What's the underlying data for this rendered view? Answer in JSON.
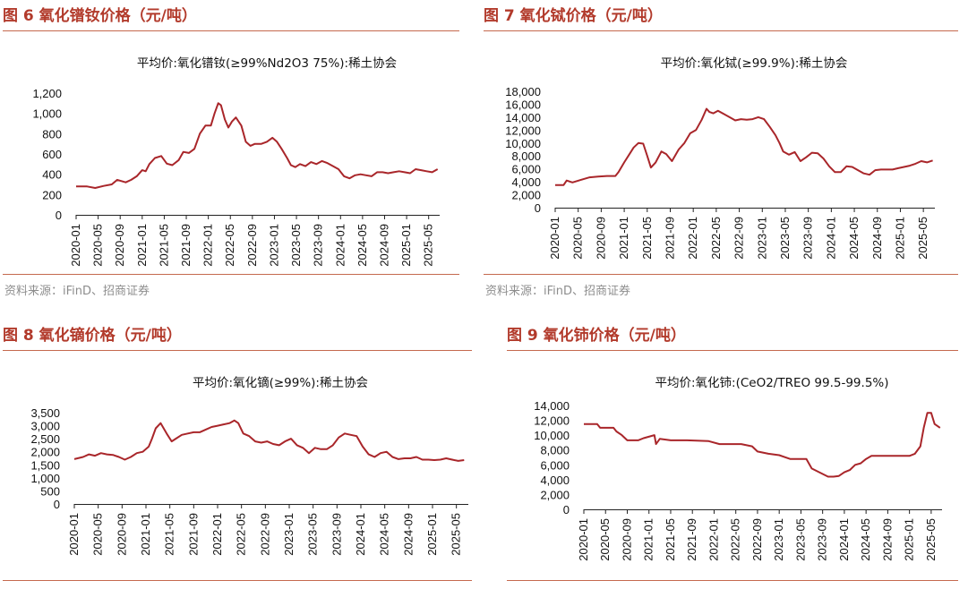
{
  "panels": [
    {
      "fig_label": "图 6",
      "fig_title": "氧化镨钕价格（元/吨）",
      "source": "资料来源：iFinD、招商证券",
      "chart_data": {
        "type": "line",
        "title": "平均价:氧化镨钕(≥99%Nd2O3 75%):稀土协会",
        "xlabel": "",
        "ylabel": "",
        "ylim": [
          0,
          1200
        ],
        "yticks": [
          "0",
          "200",
          "400",
          "600",
          "800",
          "1,000",
          "1,200"
        ],
        "ytick_values": [
          0,
          200,
          400,
          600,
          800,
          1000,
          1200
        ],
        "xticks": [
          "2020-01",
          "2020-05",
          "2020-09",
          "2021-01",
          "2021-05",
          "2021-09",
          "2022-01",
          "2022-05",
          "2022-09",
          "2023-01",
          "2023-05",
          "2023-09",
          "2024-01",
          "2024-05",
          "2024-09",
          "2025-01",
          "2025-05"
        ],
        "line_color": "#a9262a",
        "series": [
          {
            "x": [
              "2020-01-01",
              "2020-03-01",
              "2020-04-15",
              "2020-06-01",
              "2020-07-15",
              "2020-08-15",
              "2020-10-01",
              "2020-11-01",
              "2020-12-01",
              "2021-01-01",
              "2021-01-20",
              "2021-02-10",
              "2021-03-10",
              "2021-04-15",
              "2021-05-15",
              "2021-06-15",
              "2021-07-20",
              "2021-08-15",
              "2021-09-15",
              "2021-10-15",
              "2021-11-15",
              "2021-12-15",
              "2022-01-15",
              "2022-02-05",
              "2022-02-25",
              "2022-03-10",
              "2022-04-01",
              "2022-04-20",
              "2022-05-10",
              "2022-06-01",
              "2022-07-01",
              "2022-07-25",
              "2022-08-20",
              "2022-09-15",
              "2022-10-20",
              "2022-11-20",
              "2022-12-20",
              "2023-01-15",
              "2023-02-10",
              "2023-03-10",
              "2023-04-01",
              "2023-04-25",
              "2023-05-20",
              "2023-06-20",
              "2023-07-20",
              "2023-08-20",
              "2023-09-20",
              "2023-10-20",
              "2023-11-20",
              "2023-12-20",
              "2024-01-20",
              "2024-02-20",
              "2024-03-20",
              "2024-04-20",
              "2024-05-20",
              "2024-06-20",
              "2024-07-20",
              "2024-08-20",
              "2024-09-20",
              "2024-10-20",
              "2024-11-20",
              "2024-12-20",
              "2025-01-20",
              "2025-02-20",
              "2025-03-20",
              "2025-04-20",
              "2025-05-20",
              "2025-06-20"
            ],
            "y": [
              280,
              280,
              265,
              285,
              300,
              345,
              320,
              345,
              380,
              440,
              430,
              500,
              560,
              580,
              505,
              490,
              540,
              620,
              610,
              650,
              800,
              880,
              880,
              1000,
              1100,
              1080,
              940,
              860,
              920,
              960,
              880,
              720,
              680,
              700,
              700,
              720,
              760,
              720,
              650,
              560,
              490,
              470,
              500,
              480,
              520,
              500,
              530,
              510,
              480,
              450,
              380,
              360,
              390,
              400,
              390,
              380,
              420,
              420,
              410,
              420,
              430,
              420,
              410,
              450,
              440,
              430,
              420,
              450
            ]
          }
        ]
      }
    },
    {
      "fig_label": "图 7",
      "fig_title": "氧化铽价格（元/吨）",
      "source": "资料来源：iFinD、招商证券",
      "chart_data": {
        "type": "line",
        "title": "平均价:氧化铽(≥99.9%):稀土协会",
        "xlabel": "",
        "ylabel": "",
        "ylim": [
          0,
          18000
        ],
        "yticks": [
          "0",
          "2,000",
          "4,000",
          "6,000",
          "8,000",
          "10,000",
          "12,000",
          "14,000",
          "16,000",
          "18,000"
        ],
        "ytick_values": [
          0,
          2000,
          4000,
          6000,
          8000,
          10000,
          12000,
          14000,
          16000,
          18000
        ],
        "xticks": [
          "2020-01",
          "2020-05",
          "2020-09",
          "2021-01",
          "2021-05",
          "2021-09",
          "2022-01",
          "2022-05",
          "2022-09",
          "2023-01",
          "2023-05",
          "2023-09",
          "2024-01",
          "2024-05",
          "2024-09",
          "2025-01",
          "2025-05"
        ],
        "line_color": "#a9262a",
        "series": [
          {
            "x": [
              "2020-01-01",
              "2020-02-15",
              "2020-03-01",
              "2020-04-01",
              "2020-05-15",
              "2020-07-01",
              "2020-08-15",
              "2020-10-01",
              "2020-11-15",
              "2020-12-01",
              "2021-01-01",
              "2021-02-01",
              "2021-02-20",
              "2021-03-15",
              "2021-04-10",
              "2021-05-01",
              "2021-05-20",
              "2021-06-15",
              "2021-07-15",
              "2021-08-10",
              "2021-09-10",
              "2021-10-15",
              "2021-11-15",
              "2021-12-15",
              "2022-01-15",
              "2022-02-15",
              "2022-03-10",
              "2022-03-25",
              "2022-04-15",
              "2022-05-10",
              "2022-06-10",
              "2022-07-10",
              "2022-08-10",
              "2022-09-10",
              "2022-10-10",
              "2022-11-10",
              "2022-12-10",
              "2023-01-10",
              "2023-02-10",
              "2023-03-10",
              "2023-04-01",
              "2023-04-20",
              "2023-05-20",
              "2023-06-20",
              "2023-07-20",
              "2023-08-20",
              "2023-09-20",
              "2023-10-20",
              "2023-11-20",
              "2023-12-20",
              "2024-01-20",
              "2024-02-20",
              "2024-03-20",
              "2024-04-20",
              "2024-05-20",
              "2024-06-20",
              "2024-07-20",
              "2024-08-20",
              "2024-09-20",
              "2024-10-20",
              "2024-11-20",
              "2024-12-20",
              "2025-01-20",
              "2025-02-20",
              "2025-03-20",
              "2025-04-20",
              "2025-05-20",
              "2025-06-20"
            ],
            "y": [
              3500,
              3500,
              4200,
              3900,
              4300,
              4700,
              4800,
              4900,
              4900,
              5500,
              7000,
              8400,
              9300,
              10000,
              9900,
              8000,
              6200,
              7000,
              8700,
              8300,
              7200,
              9000,
              10000,
              11500,
              12000,
              13600,
              15300,
              14800,
              14600,
              15000,
              14500,
              14000,
              13500,
              13700,
              13600,
              13700,
              14000,
              13700,
              12500,
              11200,
              10000,
              8700,
              8200,
              8600,
              7200,
              7800,
              8500,
              8400,
              7600,
              6400,
              5500,
              5500,
              6400,
              6300,
              5800,
              5300,
              5100,
              5800,
              5900,
              5900,
              5900,
              6100,
              6300,
              6500,
              6800,
              7200,
              7000,
              7300
            ]
          }
        ]
      }
    },
    {
      "fig_label": "图 8",
      "fig_title": "氧化镝价格（元/吨）",
      "source": "",
      "chart_data": {
        "type": "line",
        "title": "平均价:氧化镝(≥99%):稀土协会",
        "xlabel": "",
        "ylabel": "",
        "ylim": [
          0,
          3500
        ],
        "yticks": [
          "0",
          "500",
          "1,000",
          "1,500",
          "2,000",
          "2,500",
          "3,000",
          "3,500"
        ],
        "ytick_values": [
          0,
          500,
          1000,
          1500,
          2000,
          2500,
          3000,
          3500
        ],
        "xticks": [
          "2020-01",
          "2020-05",
          "2020-09",
          "2021-01",
          "2021-05",
          "2021-09",
          "2022-01",
          "2022-05",
          "2022-09",
          "2023-01",
          "2023-05",
          "2023-09",
          "2024-01",
          "2024-05",
          "2024-09",
          "2025-01",
          "2025-05"
        ],
        "line_color": "#a9262a",
        "series": [
          {
            "x": [
              "2020-01-01",
              "2020-02-15",
              "2020-03-15",
              "2020-04-15",
              "2020-05-15",
              "2020-06-15",
              "2020-07-15",
              "2020-08-15",
              "2020-09-15",
              "2020-10-15",
              "2020-11-15",
              "2020-12-15",
              "2021-01-15",
              "2021-02-01",
              "2021-02-20",
              "2021-03-15",
              "2021-04-15",
              "2021-05-10",
              "2021-06-01",
              "2021-07-01",
              "2021-08-01",
              "2021-09-01",
              "2021-10-01",
              "2021-11-01",
              "2021-12-01",
              "2022-01-01",
              "2022-02-01",
              "2022-03-01",
              "2022-03-25",
              "2022-04-15",
              "2022-05-10",
              "2022-06-10",
              "2022-07-10",
              "2022-08-10",
              "2022-09-10",
              "2022-10-10",
              "2022-11-10",
              "2022-12-10",
              "2023-01-10",
              "2023-02-10",
              "2023-03-10",
              "2023-04-10",
              "2023-05-10",
              "2023-06-10",
              "2023-07-10",
              "2023-08-10",
              "2023-09-10",
              "2023-10-10",
              "2023-11-10",
              "2023-12-10",
              "2024-01-10",
              "2024-02-10",
              "2024-03-10",
              "2024-04-10",
              "2024-05-10",
              "2024-06-10",
              "2024-07-10",
              "2024-08-10",
              "2024-09-10",
              "2024-10-10",
              "2024-11-10",
              "2024-12-10",
              "2025-01-10",
              "2025-02-10",
              "2025-03-10",
              "2025-04-10",
              "2025-05-10",
              "2025-06-10"
            ],
            "y": [
              1720,
              1800,
              1900,
              1850,
              1950,
              1900,
              1880,
              1800,
              1700,
              1800,
              1950,
              2000,
              2200,
              2500,
              2900,
              3100,
              2700,
              2400,
              2500,
              2650,
              2700,
              2750,
              2750,
              2850,
              2950,
              3000,
              3050,
              3100,
              3200,
              3100,
              2700,
              2600,
              2400,
              2350,
              2400,
              2300,
              2250,
              2400,
              2500,
              2250,
              2150,
              1950,
              2150,
              2100,
              2100,
              2250,
              2550,
              2700,
              2650,
              2600,
              2200,
              1900,
              1800,
              1950,
              2000,
              1800,
              1720,
              1750,
              1750,
              1800,
              1700,
              1700,
              1680,
              1700,
              1750,
              1700,
              1650,
              1680
            ]
          }
        ]
      }
    },
    {
      "fig_label": "图 9",
      "fig_title": "氧化铈价格（元/吨）",
      "source": "",
      "chart_data": {
        "type": "line",
        "title": "平均价:氧化铈:(CeO2/TREO 99.5-99.5%)",
        "xlabel": "",
        "ylabel": "",
        "ylim": [
          0,
          14000
        ],
        "yticks": [
          "0",
          "2,000",
          "4,000",
          "6,000",
          "8,000",
          "10,000",
          "12,000",
          "14,000"
        ],
        "ytick_values": [
          0,
          2000,
          4000,
          6000,
          8000,
          10000,
          12000,
          14000
        ],
        "xticks": [
          "2020-01",
          "2020-05",
          "2020-09",
          "2021-01",
          "2021-05",
          "2021-09",
          "2022-01",
          "2022-05",
          "2022-09",
          "2023-01",
          "2023-05",
          "2023-09",
          "2024-01",
          "2024-05",
          "2024-09",
          "2025-01",
          "2025-05"
        ],
        "line_color": "#a9262a",
        "series": [
          {
            "x": [
              "2020-01-01",
              "2020-03-15",
              "2020-04-01",
              "2020-06-15",
              "2020-07-01",
              "2020-08-01",
              "2020-09-01",
              "2020-11-01",
              "2020-12-01",
              "2021-02-01",
              "2021-02-10",
              "2021-03-01",
              "2021-05-01",
              "2021-08-01",
              "2021-12-01",
              "2022-02-01",
              "2022-06-01",
              "2022-08-01",
              "2022-09-01",
              "2022-11-01",
              "2023-01-01",
              "2023-03-01",
              "2023-04-01",
              "2023-06-01",
              "2023-07-01",
              "2023-10-01",
              "2023-11-01",
              "2023-12-01",
              "2024-01-01",
              "2024-02-01",
              "2024-03-01",
              "2024-04-01",
              "2024-05-01",
              "2024-06-01",
              "2024-09-01",
              "2024-12-01",
              "2025-01-01",
              "2025-02-01",
              "2025-03-01",
              "2025-03-20",
              "2025-04-10",
              "2025-05-01",
              "2025-05-20",
              "2025-06-20"
            ],
            "y": [
              11500,
              11500,
              11000,
              11000,
              10500,
              10000,
              9300,
              9300,
              9600,
              10000,
              8800,
              9500,
              9300,
              9300,
              9200,
              8800,
              8800,
              8500,
              7800,
              7500,
              7300,
              6800,
              6800,
              6800,
              5500,
              4400,
              4400,
              4500,
              5000,
              5300,
              6000,
              6200,
              6800,
              7200,
              7200,
              7200,
              7200,
              7500,
              8500,
              11000,
              13000,
              13000,
              11500,
              11000
            ]
          }
        ]
      }
    }
  ]
}
